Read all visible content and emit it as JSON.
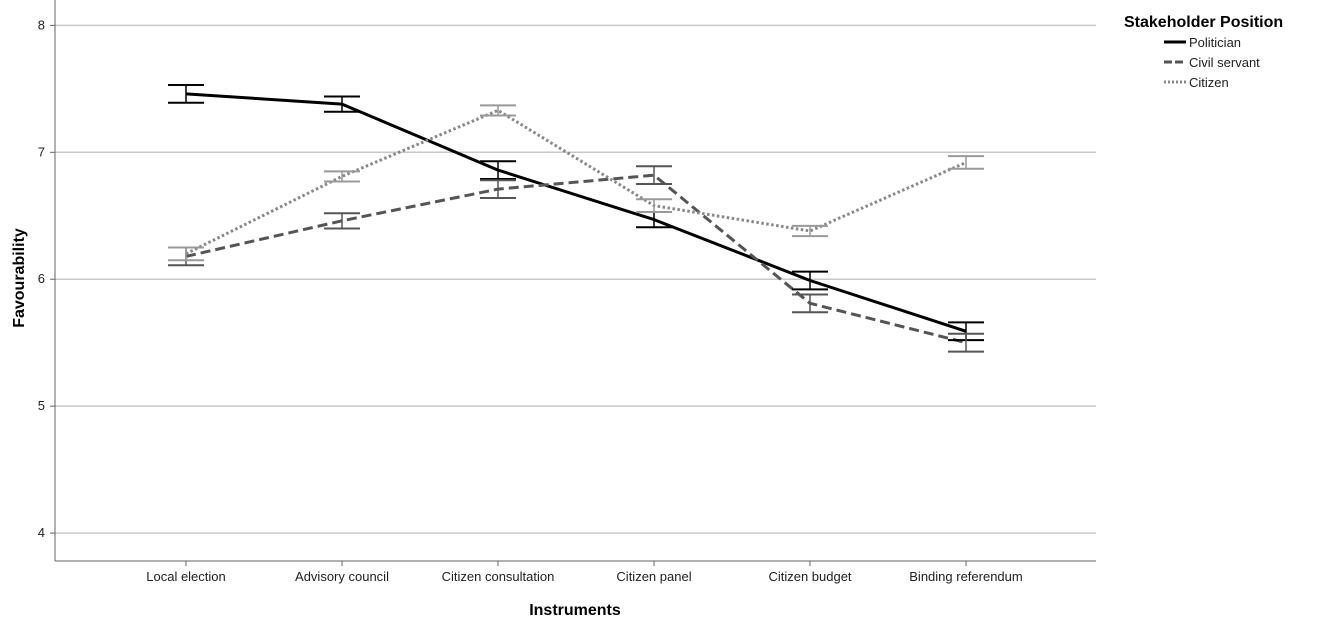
{
  "chart_data": {
    "type": "line",
    "xlabel": "Instruments",
    "ylabel": "Favourability",
    "categories": [
      "Local election",
      "Advisory council",
      "Citizen consultation",
      "Citizen panel",
      "Citizen budget",
      "Binding referendum"
    ],
    "ylim": [
      3.78,
      8.2
    ],
    "yticks": [
      4,
      5,
      6,
      7,
      8
    ],
    "grid": "horizontal",
    "error_bars": true,
    "legend": {
      "title": "Stakeholder Position",
      "placement": "right"
    },
    "series": [
      {
        "name": "Politician",
        "color": "#000000",
        "dash": "solid",
        "values": [
          7.46,
          7.38,
          6.86,
          6.47,
          5.99,
          5.59
        ],
        "err": [
          0.07,
          0.06,
          0.07,
          0.06,
          0.07,
          0.07
        ]
      },
      {
        "name": "Civil servant",
        "color": "#555555",
        "dash": "dashed",
        "values": [
          6.18,
          6.46,
          6.71,
          6.82,
          5.81,
          5.5
        ],
        "err": [
          0.07,
          0.06,
          0.07,
          0.07,
          0.07,
          0.07
        ]
      },
      {
        "name": "Citizen",
        "color": "#888888",
        "dash": "dotted",
        "values": [
          6.2,
          6.81,
          7.33,
          6.58,
          6.38,
          6.92
        ],
        "err": [
          0.05,
          0.04,
          0.04,
          0.05,
          0.04,
          0.05
        ]
      }
    ]
  }
}
